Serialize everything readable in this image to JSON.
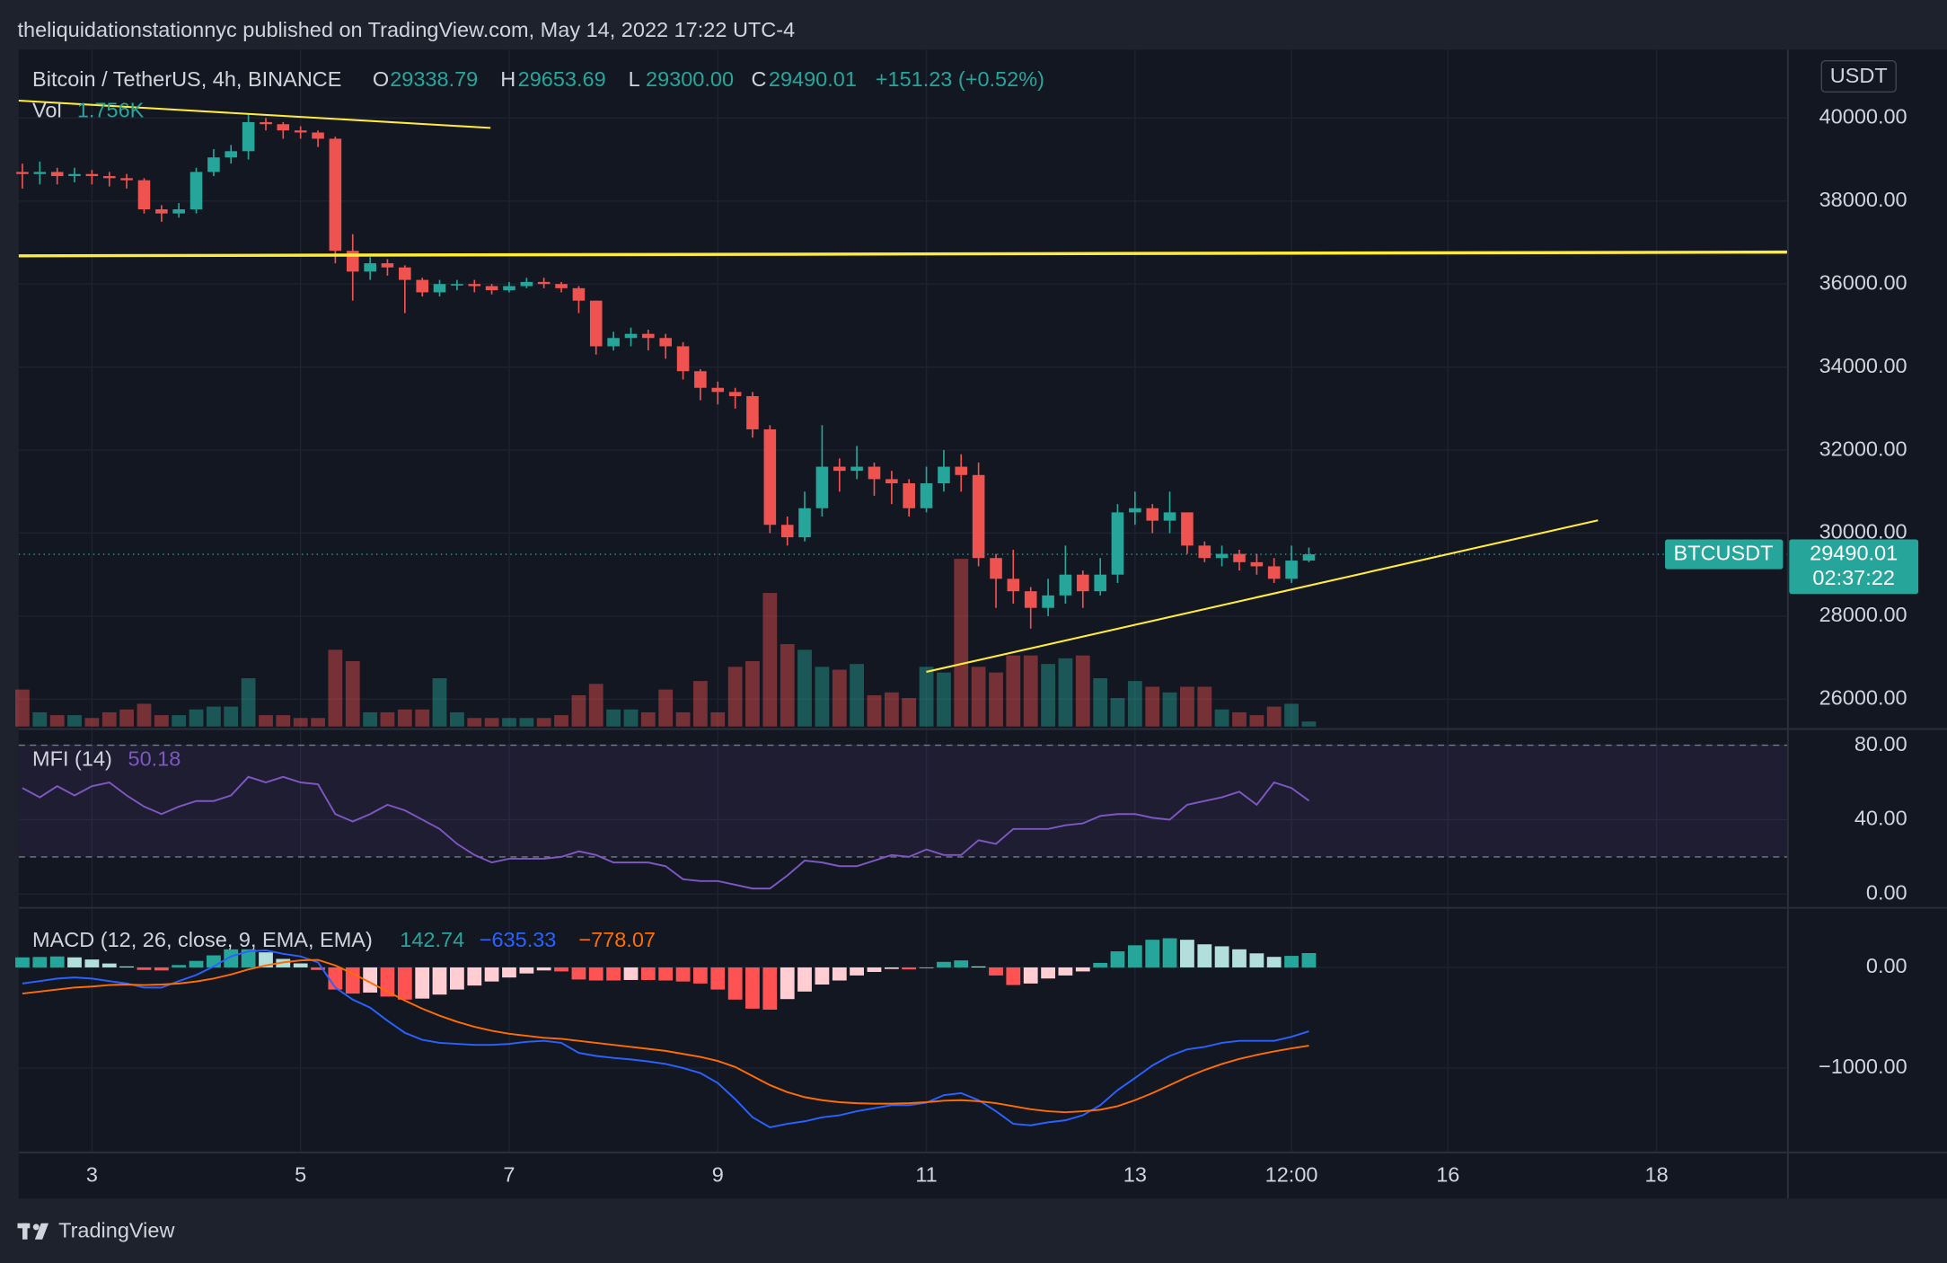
{
  "header": "theliquidationstationnyc published on TradingView.com, May 14, 2022 17:22 UTC-4",
  "footer": "TradingView",
  "chart_data": {
    "type": "candlestick",
    "symbol": "Bitcoin / TetherUS, 4h, BINANCE",
    "ohlc_legend": [
      {
        "key": "O",
        "value": "29338.79"
      },
      {
        "key": "H",
        "value": "29653.69"
      },
      {
        "key": "L",
        "value": "29300.00"
      },
      {
        "key": "C",
        "value": "29490.01"
      }
    ],
    "change": "+151.23 (+0.52%)",
    "currency": "USDT",
    "price_tag": {
      "name": "BTCUSDT",
      "value": 29490.01,
      "countdown": "02:37:22"
    },
    "up_color": "#26a69a",
    "down_color": "#ef5350",
    "x": [
      2.333,
      2.5,
      2.667,
      2.833,
      3,
      3.167,
      3.333,
      3.5,
      3.667,
      3.833,
      4,
      4.167,
      4.333,
      4.5,
      4.667,
      4.833,
      5,
      5.167,
      5.333,
      5.5,
      5.667,
      5.833,
      6,
      6.167,
      6.333,
      6.5,
      6.667,
      6.833,
      7,
      7.167,
      7.333,
      7.5,
      7.667,
      7.833,
      8,
      8.167,
      8.333,
      8.5,
      8.667,
      8.833,
      9,
      9.167,
      9.333,
      9.5,
      9.667,
      9.833,
      10,
      10.167,
      10.333,
      10.5,
      10.667,
      10.833,
      11,
      11.167,
      11.333,
      11.5,
      11.667,
      11.833,
      12,
      12.167,
      12.333,
      12.5,
      12.667,
      12.833,
      13,
      13.167,
      13.333,
      13.5,
      13.667,
      13.833,
      14,
      14.167,
      14.333,
      14.5,
      14.667
    ],
    "open": [
      38700,
      38650,
      38700,
      38600,
      38650,
      38600,
      38550,
      38500,
      37800,
      37700,
      37800,
      38700,
      39050,
      39200,
      39900,
      39850,
      39700,
      39650,
      39500,
      36800,
      36300,
      36500,
      36400,
      36100,
      35800,
      36000,
      36000,
      35950,
      35850,
      35950,
      36050,
      36000,
      35900,
      35600,
      34500,
      34700,
      34800,
      34700,
      34500,
      33900,
      33500,
      33400,
      33300,
      32500,
      30200,
      29900,
      30600,
      31600,
      31500,
      31600,
      31300,
      31200,
      30600,
      31200,
      31600,
      31400,
      29400,
      28900,
      28600,
      28200,
      28500,
      29000,
      28600,
      29000,
      30500,
      30600,
      30300,
      30500,
      29700,
      29400,
      29500,
      29300,
      29200,
      28900,
      29338.79
    ],
    "high": [
      38900,
      38950,
      38800,
      38800,
      38750,
      38700,
      38650,
      38550,
      37900,
      37950,
      38800,
      39250,
      39350,
      40100,
      40000,
      39900,
      39800,
      39700,
      39550,
      37200,
      36650,
      36600,
      36450,
      36150,
      36100,
      36100,
      36100,
      36000,
      36050,
      36150,
      36150,
      36050,
      35950,
      35600,
      34850,
      34950,
      34900,
      34800,
      34600,
      33950,
      33650,
      33500,
      33400,
      32600,
      30400,
      31000,
      32600,
      31800,
      32100,
      31700,
      31500,
      31300,
      31600,
      32000,
      31900,
      31700,
      29500,
      29600,
      28700,
      28900,
      29700,
      29100,
      29400,
      30700,
      31000,
      30700,
      31000,
      30500,
      29800,
      29700,
      29600,
      29500,
      29400,
      29700,
      29653.69
    ],
    "low": [
      38300,
      38400,
      38400,
      38450,
      38400,
      38350,
      38300,
      37700,
      37500,
      37600,
      37700,
      38600,
      38900,
      39000,
      39700,
      39500,
      39500,
      39300,
      36500,
      35600,
      36100,
      36200,
      35300,
      35700,
      35700,
      35850,
      35800,
      35750,
      35800,
      35900,
      35900,
      35800,
      35300,
      34300,
      34400,
      34500,
      34400,
      34200,
      33700,
      33200,
      33100,
      33000,
      32300,
      30000,
      29700,
      29800,
      30400,
      31000,
      31300,
      30900,
      30700,
      30400,
      30500,
      31000,
      31000,
      29200,
      28200,
      28300,
      27700,
      28000,
      28300,
      28200,
      28500,
      28800,
      30200,
      30000,
      30000,
      29500,
      29300,
      29200,
      29100,
      29000,
      28800,
      28800,
      29300
    ],
    "close": [
      38650,
      38700,
      38600,
      38650,
      38600,
      38550,
      38500,
      37800,
      37700,
      37800,
      38700,
      39050,
      39200,
      39900,
      39850,
      39700,
      39650,
      39500,
      36800,
      36300,
      36500,
      36400,
      36100,
      35800,
      36000,
      36000,
      35950,
      35850,
      35950,
      36050,
      36000,
      35900,
      35600,
      34500,
      34700,
      34800,
      34700,
      34500,
      33900,
      33500,
      33400,
      33300,
      32500,
      30200,
      29900,
      30600,
      31600,
      31500,
      31600,
      31300,
      31200,
      30600,
      31200,
      31600,
      31400,
      29400,
      28900,
      28600,
      28200,
      28500,
      29000,
      28600,
      29000,
      30500,
      30600,
      30300,
      30500,
      29700,
      29400,
      29500,
      29300,
      29200,
      28900,
      29338.79,
      29490.01
    ],
    "xlim": [
      2.298,
      19.26
    ],
    "xticks": [
      3,
      5,
      7,
      9,
      11,
      13,
      {
        "value": 14.5,
        "label": "12:00"
      },
      16,
      18
    ],
    "ylim": [
      25342,
      41645
    ],
    "yticks": [
      {
        "value": 26000,
        "label": "26000.00"
      },
      {
        "value": 28000,
        "label": "28000.00"
      },
      {
        "value": 30000,
        "label": "30000.00"
      },
      {
        "value": 32000,
        "label": "32000.00"
      },
      {
        "value": 34000,
        "label": "34000.00"
      },
      {
        "value": 36000,
        "label": "36000.00"
      },
      {
        "value": 38000,
        "label": "38000.00"
      },
      {
        "value": 40000,
        "label": "40000.00"
      }
    ],
    "grid": true,
    "volume": {
      "name": "Vol",
      "label": "1.756K",
      "values": [
        13,
        5,
        4,
        4,
        3,
        5,
        6,
        8,
        4,
        4,
        6,
        7,
        7,
        17,
        4,
        4,
        3,
        3,
        27,
        23,
        5,
        5,
        6,
        6,
        17,
        5,
        3,
        3,
        3,
        3,
        3,
        4,
        11,
        15,
        6,
        6,
        5,
        13,
        5,
        16,
        5,
        21,
        23,
        47,
        29,
        27,
        21,
        20,
        22,
        11,
        12,
        10,
        21,
        19,
        59,
        21,
        19,
        25,
        25,
        22,
        24,
        25,
        17,
        10,
        16,
        14,
        12,
        14,
        14,
        6,
        5,
        4,
        7,
        8,
        1.756
      ]
    },
    "mfi": {
      "name": "MFI (14)",
      "label": "50.18",
      "color": "#7e57c2",
      "values": [
        57,
        52,
        58,
        53,
        58,
        60,
        53,
        47,
        43,
        47,
        50,
        50,
        53,
        63,
        60,
        63,
        60,
        59,
        43,
        39,
        43,
        48,
        45,
        40,
        35,
        27,
        21,
        17,
        19,
        19,
        19,
        20,
        23,
        21,
        17,
        17,
        17,
        15,
        8,
        7,
        7,
        5,
        3,
        3,
        10,
        18,
        17,
        15,
        15,
        18,
        21,
        20,
        24,
        21,
        21,
        29,
        27,
        35,
        35,
        35,
        37,
        38,
        42,
        43,
        43,
        41,
        40,
        48,
        50,
        52,
        55,
        48,
        60,
        57,
        50.18
      ],
      "ylim": [
        -6.7,
        86.7
      ],
      "yticks": [
        {
          "value": 0,
          "label": "0.00"
        },
        {
          "value": 40,
          "label": "40.00"
        },
        {
          "value": 80,
          "label": "80.00"
        }
      ],
      "band": [
        20,
        80
      ]
    },
    "macd": {
      "name": "MACD (12, 26, close, 9, EMA, EMA)",
      "ylim": [
        -1840,
        568
      ],
      "yticks": [
        {
          "value": 0,
          "label": "0.00"
        },
        {
          "value": -1000,
          "label": "−1000.00"
        }
      ],
      "histogram": {
        "label": "142.74",
        "values": [
          100,
          104,
          109,
          100,
          79,
          39,
          10,
          -25,
          -30,
          24,
          65,
          120,
          180,
          180,
          150,
          85,
          40,
          -25,
          -220,
          -260,
          -250,
          -290,
          -320,
          -310,
          -270,
          -220,
          -180,
          -140,
          -100,
          -60,
          -30,
          -40,
          -120,
          -130,
          -130,
          -125,
          -125,
          -130,
          -140,
          -160,
          -220,
          -320,
          -410,
          -420,
          -315,
          -240,
          -170,
          -130,
          -80,
          -45,
          -15,
          -20,
          -5,
          55,
          70,
          10,
          -80,
          -175,
          -160,
          -110,
          -80,
          -40,
          45,
          160,
          220,
          275,
          290,
          275,
          230,
          210,
          180,
          140,
          105,
          115,
          142.74
        ]
      },
      "macd": {
        "label": "−635.33",
        "color": "#2962ff",
        "values": [
          -160,
          -136,
          -111,
          -100,
          -111,
          -136,
          -160,
          -200,
          -200,
          -136,
          -75,
          10,
          110,
          160,
          170,
          135,
          110,
          50,
          -200,
          -320,
          -400,
          -530,
          -650,
          -720,
          -750,
          -760,
          -770,
          -770,
          -760,
          -740,
          -730,
          -750,
          -850,
          -880,
          -900,
          -915,
          -935,
          -960,
          -1000,
          -1050,
          -1150,
          -1310,
          -1490,
          -1590,
          -1555,
          -1530,
          -1490,
          -1470,
          -1430,
          -1400,
          -1370,
          -1370,
          -1345,
          -1270,
          -1250,
          -1320,
          -1430,
          -1555,
          -1570,
          -1540,
          -1520,
          -1470,
          -1370,
          -1220,
          -1100,
          -975,
          -880,
          -815,
          -790,
          -750,
          -730,
          -730,
          -730,
          -690,
          -635.33
        ]
      },
      "signal": {
        "label": "−778.07",
        "color": "#ff6d00",
        "values": [
          -260,
          -240,
          -220,
          -200,
          -190,
          -175,
          -170,
          -175,
          -170,
          -160,
          -140,
          -110,
          -70,
          -20,
          20,
          50,
          70,
          75,
          20,
          -60,
          -150,
          -240,
          -330,
          -410,
          -480,
          -540,
          -590,
          -630,
          -660,
          -680,
          -700,
          -710,
          -730,
          -750,
          -770,
          -790,
          -810,
          -830,
          -860,
          -890,
          -930,
          -990,
          -1080,
          -1170,
          -1240,
          -1290,
          -1320,
          -1340,
          -1350,
          -1355,
          -1355,
          -1350,
          -1340,
          -1325,
          -1320,
          -1330,
          -1350,
          -1380,
          -1410,
          -1430,
          -1440,
          -1430,
          -1415,
          -1380,
          -1320,
          -1250,
          -1170,
          -1090,
          -1020,
          -960,
          -910,
          -870,
          -835,
          -805,
          -778.07
        ]
      }
    }
  }
}
